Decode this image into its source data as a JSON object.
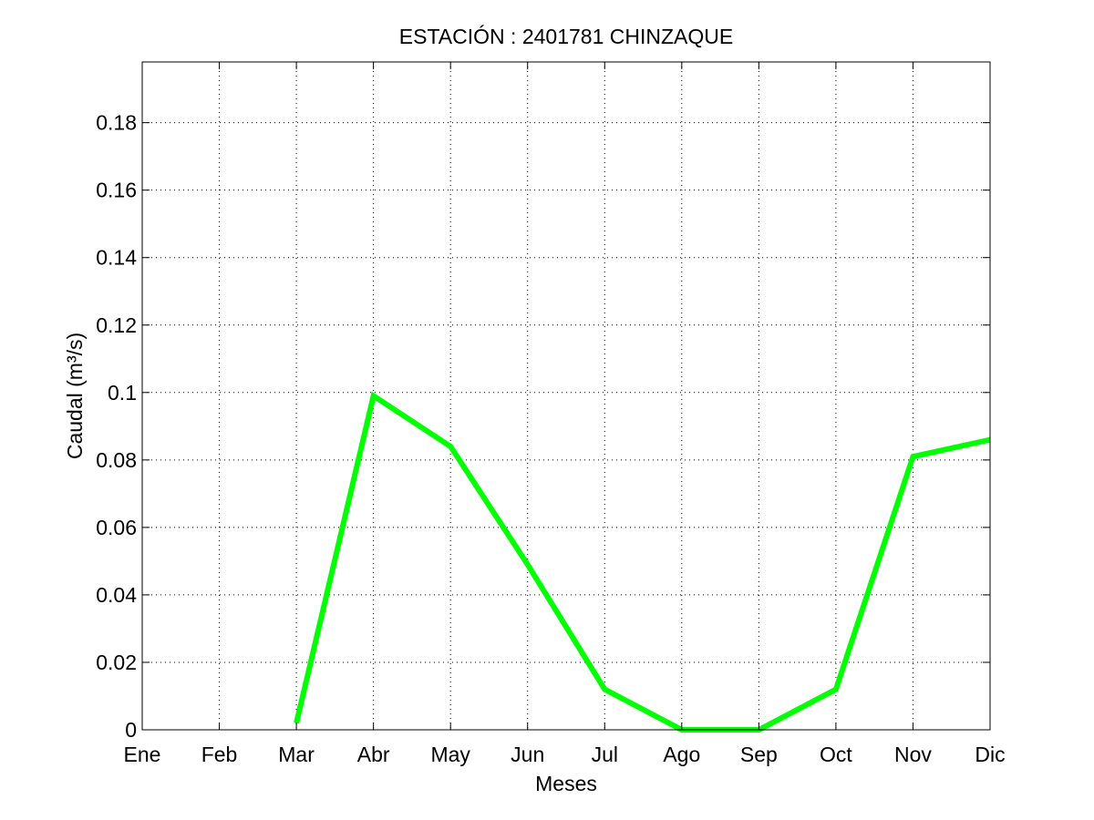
{
  "chart_data": {
    "type": "line",
    "title": "ESTACIÓN :  2401781  CHINZAQUE",
    "xlabel": "Meses",
    "ylabel": "Caudal (m³/s)",
    "categories": [
      "Ene",
      "Feb",
      "Mar",
      "Abr",
      "May",
      "Jun",
      "Jul",
      "Ago",
      "Sep",
      "Oct",
      "Nov",
      "Dic"
    ],
    "yticks": [
      "0",
      "0.02",
      "0.04",
      "0.06",
      "0.08",
      "0.1",
      "0.12",
      "0.14",
      "0.16",
      "0.18"
    ],
    "ylim": [
      0,
      0.198
    ],
    "grid": true,
    "series": [
      {
        "color": "#00ff00",
        "values": [
          null,
          null,
          0.002,
          0.099,
          0.084,
          0.049,
          0.012,
          0.0,
          0.0,
          0.012,
          0.081,
          0.086
        ]
      }
    ]
  }
}
